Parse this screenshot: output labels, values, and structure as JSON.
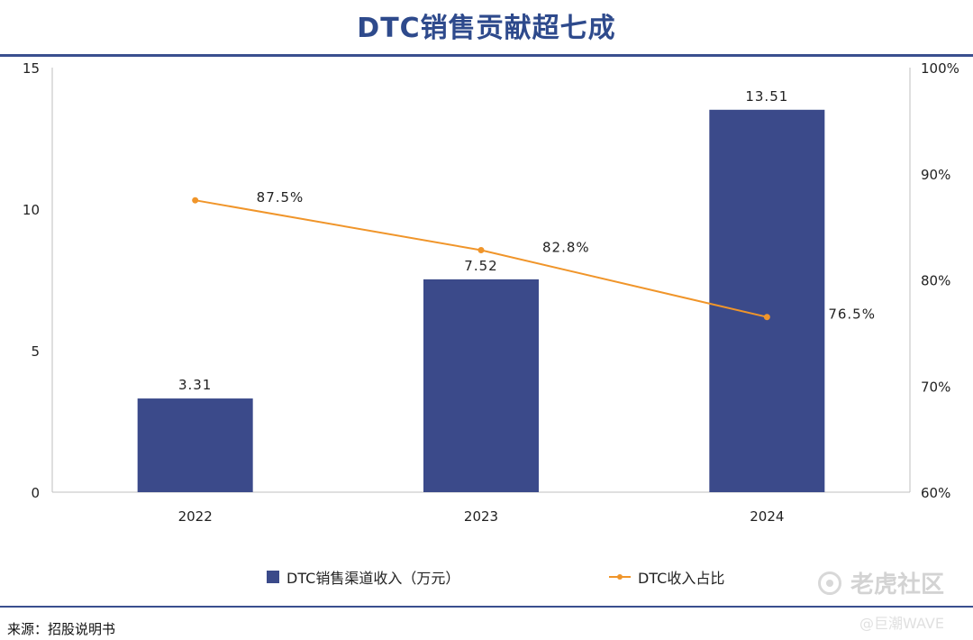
{
  "title": "DTC销售贡献超七成",
  "chart_data": {
    "type": "bar",
    "categories": [
      "2022",
      "2023",
      "2024"
    ],
    "series": [
      {
        "name": "DTC销售渠道收入（万元）",
        "kind": "bar",
        "axis": "left",
        "values": [
          3.31,
          7.52,
          13.51
        ],
        "labels": [
          "3.31",
          "7.52",
          "13.51"
        ],
        "color": "#3b4a8a"
      },
      {
        "name": "DTC收入占比",
        "kind": "line",
        "axis": "right",
        "values": [
          87.5,
          82.8,
          76.5
        ],
        "labels": [
          "87.5%",
          "82.8%",
          "76.5%"
        ],
        "color": "#f0952a"
      }
    ],
    "y_left": {
      "min": 0,
      "max": 15,
      "ticks": [
        0,
        5,
        10,
        15
      ],
      "tick_labels": [
        "0",
        "5",
        "10",
        "15"
      ]
    },
    "y_right": {
      "min": 60,
      "max": 100,
      "ticks": [
        60,
        70,
        80,
        90,
        100
      ],
      "tick_labels": [
        "60%",
        "70%",
        "80%",
        "90%",
        "100%"
      ]
    },
    "legend_position": "bottom",
    "grid": false
  },
  "legend": {
    "bar_label": "DTC销售渠道收入（万元）",
    "line_label": "DTC收入占比"
  },
  "source": "来源：招股说明书",
  "watermark": {
    "main": "老虎社区",
    "sub": "@巨潮WAVE"
  }
}
